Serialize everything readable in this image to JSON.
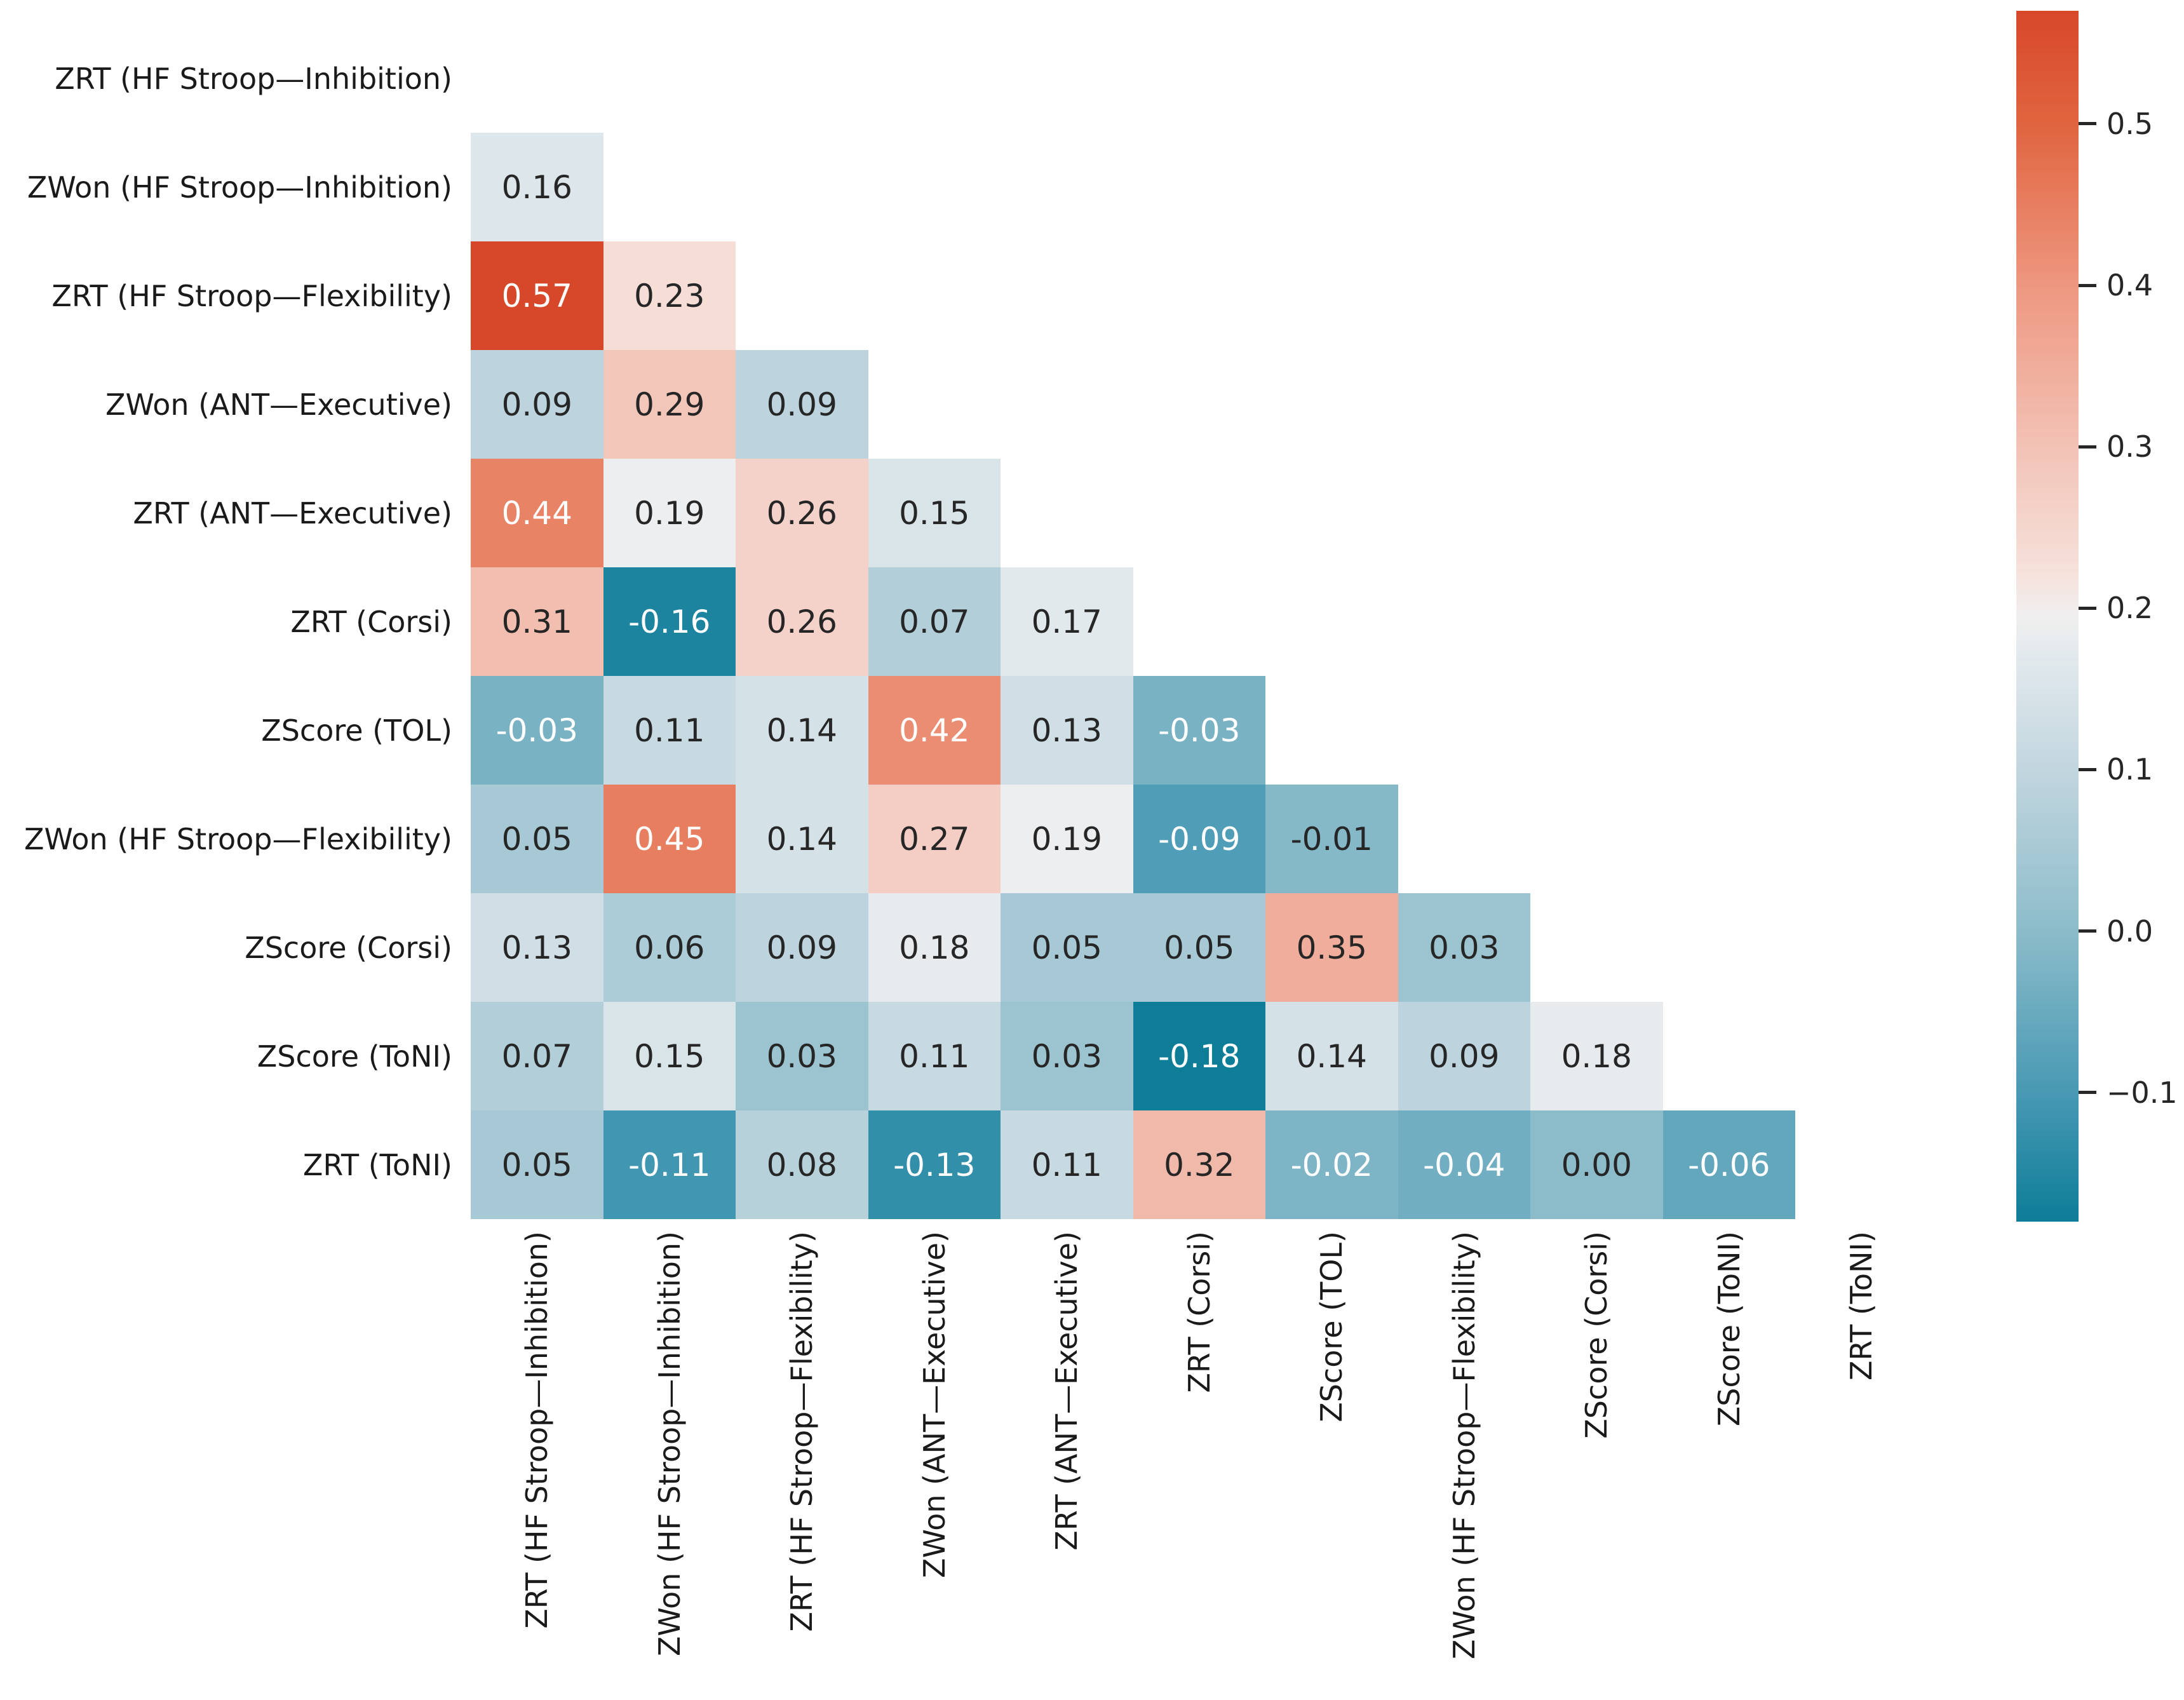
{
  "chart_data": {
    "type": "heatmap",
    "subtype": "correlation-matrix-lower-triangle",
    "title": "",
    "grid": false,
    "legend_position": "right-colorbar",
    "row_labels": [
      "ZRT (HF Stroop—Inhibition)",
      "ZWon (HF Stroop—Inhibition)",
      "ZRT (HF Stroop—Flexibility)",
      "ZWon (ANT—Executive)",
      "ZRT (ANT—Executive)",
      "ZRT (Corsi)",
      "ZScore (TOL)",
      "ZWon (HF Stroop—Flexibility)",
      "ZScore (Corsi)",
      "ZScore (ToNI)",
      "ZRT (ToNI)"
    ],
    "col_labels": [
      "ZRT (HF Stroop—Inhibition)",
      "ZWon (HF Stroop—Inhibition)",
      "ZRT (HF Stroop—Flexibility)",
      "ZWon (ANT—Executive)",
      "ZRT (ANT—Executive)",
      "ZRT (Corsi)",
      "ZScore (TOL)",
      "ZWon (HF Stroop—Flexibility)",
      "ZScore (Corsi)",
      "ZScore (ToNI)",
      "ZRT (ToNI)"
    ],
    "matrix": [
      [
        null,
        null,
        null,
        null,
        null,
        null,
        null,
        null,
        null,
        null,
        null
      ],
      [
        0.16,
        null,
        null,
        null,
        null,
        null,
        null,
        null,
        null,
        null,
        null
      ],
      [
        0.57,
        0.23,
        null,
        null,
        null,
        null,
        null,
        null,
        null,
        null,
        null
      ],
      [
        0.09,
        0.29,
        0.09,
        null,
        null,
        null,
        null,
        null,
        null,
        null,
        null
      ],
      [
        0.44,
        0.19,
        0.26,
        0.15,
        null,
        null,
        null,
        null,
        null,
        null,
        null
      ],
      [
        0.31,
        -0.16,
        0.26,
        0.07,
        0.17,
        null,
        null,
        null,
        null,
        null,
        null
      ],
      [
        -0.03,
        0.11,
        0.14,
        0.42,
        0.13,
        -0.03,
        null,
        null,
        null,
        null,
        null
      ],
      [
        0.05,
        0.45,
        0.14,
        0.27,
        0.19,
        -0.09,
        -0.01,
        null,
        null,
        null,
        null
      ],
      [
        0.13,
        0.06,
        0.09,
        0.18,
        0.05,
        0.05,
        0.35,
        0.03,
        null,
        null,
        null
      ],
      [
        0.07,
        0.15,
        0.03,
        0.11,
        0.03,
        -0.18,
        0.14,
        0.09,
        0.18,
        null,
        null
      ],
      [
        0.05,
        -0.11,
        0.08,
        -0.13,
        0.11,
        0.32,
        -0.02,
        -0.04,
        0.0,
        -0.06,
        null
      ]
    ],
    "value_format": ".2f",
    "vmin": -0.18,
    "vmax": 0.57,
    "colorbar": {
      "ticks": [
        0.5,
        0.4,
        0.3,
        0.2,
        0.1,
        0.0,
        -0.1
      ],
      "tick_labels": [
        "0.5",
        "0.4",
        "0.3",
        "0.2",
        "0.1",
        "0.0",
        "−0.1"
      ]
    },
    "colormap_stops": [
      [
        -0.18,
        "#0d7d98"
      ],
      [
        -0.1,
        "#4899b4"
      ],
      [
        0.0,
        "#8cbcca"
      ],
      [
        0.1,
        "#c2d6df"
      ],
      [
        0.17,
        "#e2e9ed"
      ],
      [
        0.195,
        "#f0efef"
      ],
      [
        0.22,
        "#f6e2dc"
      ],
      [
        0.3,
        "#f2c2b5"
      ],
      [
        0.4,
        "#ee9780"
      ],
      [
        0.5,
        "#e0643f"
      ],
      [
        0.57,
        "#d7482a"
      ]
    ],
    "annotation_colors": {
      "dark": "#262626",
      "light": "#ffffff",
      "luminance_threshold": 0.42
    },
    "background": "#ffffff"
  }
}
